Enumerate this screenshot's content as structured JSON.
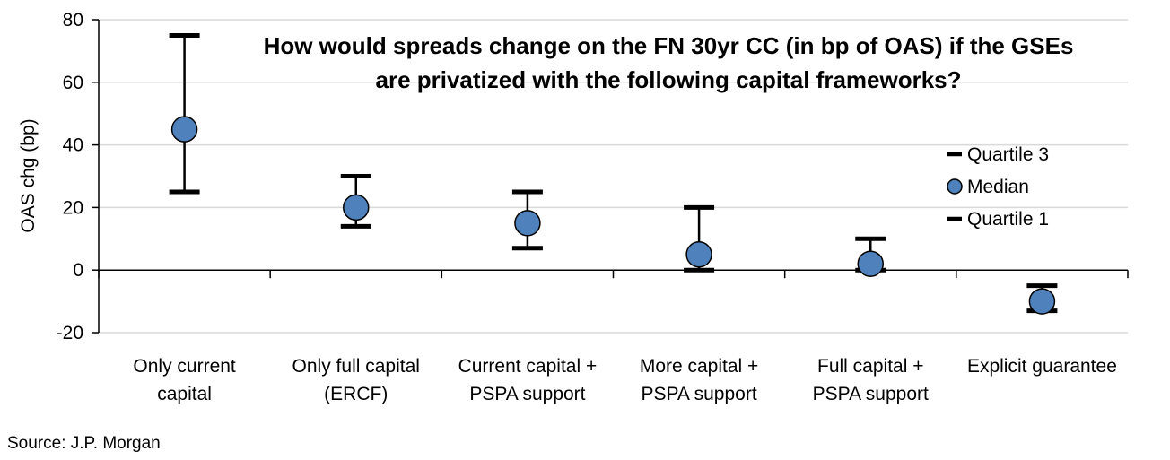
{
  "chart_data": {
    "type": "scatter",
    "title_line1": "How would spreads change on the FN 30yr CC (in bp of OAS) if the GSEs",
    "title_line2": "are privatized with the following capital frameworks?",
    "ylabel": "OAS chg (bp)",
    "ylim": [
      -20,
      80
    ],
    "yticks": [
      -20,
      0,
      20,
      40,
      60,
      80
    ],
    "grid": true,
    "legend_position": "right",
    "categories": [
      [
        "Only current",
        "capital"
      ],
      [
        "Only full capital",
        "(ERCF)"
      ],
      [
        "Current capital +",
        "PSPA support"
      ],
      [
        "More capital +",
        "PSPA support"
      ],
      [
        "Full capital +",
        "PSPA support"
      ],
      [
        "Explicit guarantee"
      ]
    ],
    "series": [
      {
        "name": "Quartile 3",
        "values": [
          75,
          30,
          25,
          20,
          10,
          -5
        ]
      },
      {
        "name": "Median",
        "values": [
          45,
          20,
          15,
          5,
          2,
          -10
        ]
      },
      {
        "name": "Quartile 1",
        "values": [
          25,
          14,
          7,
          0,
          0,
          -13
        ]
      }
    ],
    "source": "Source: J.P. Morgan",
    "colors": {
      "marker": "#4f81bd",
      "whisker": "#000000",
      "grid": "#d9d9d9"
    }
  }
}
